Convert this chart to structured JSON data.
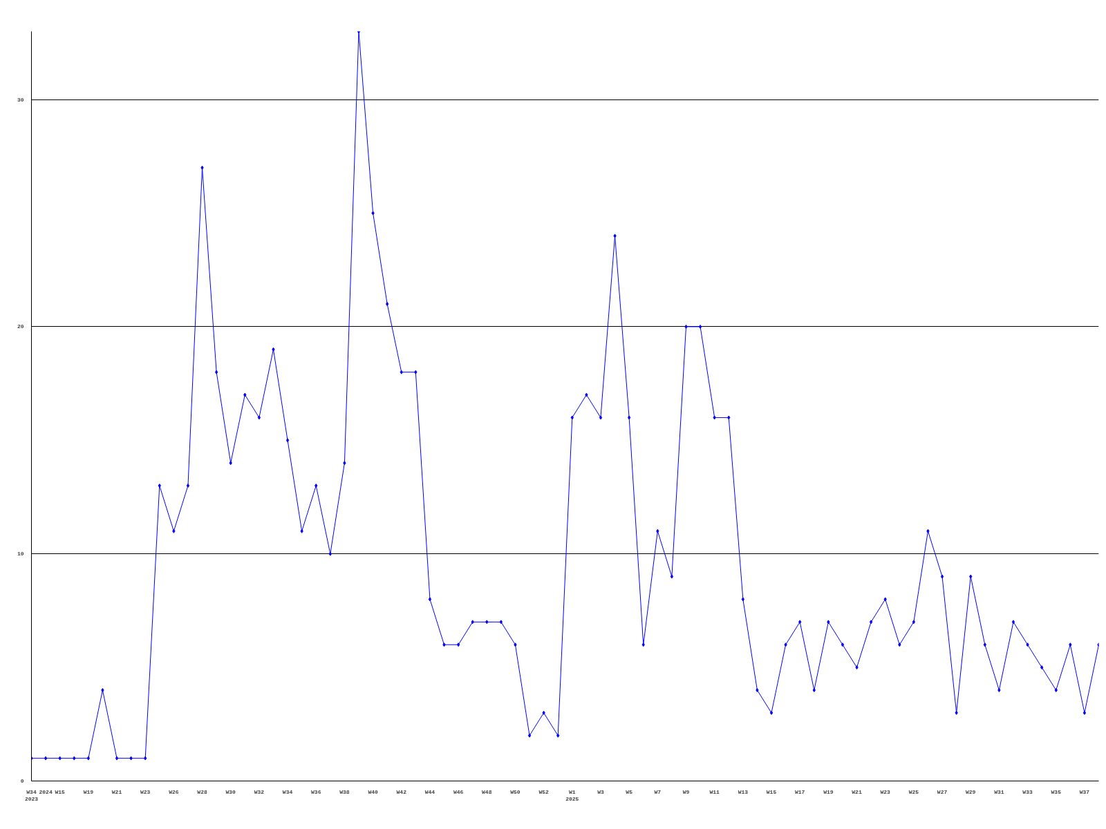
{
  "chart_data": {
    "type": "line",
    "categories": [
      "W34\n2023",
      "2024",
      "W15",
      null,
      "W19",
      null,
      "W21",
      null,
      "W23",
      null,
      "W26",
      null,
      "W28",
      null,
      "W30",
      null,
      "W32",
      null,
      "W34",
      null,
      "W36",
      null,
      "W38",
      null,
      "W40",
      null,
      "W42",
      null,
      "W44",
      null,
      "W46",
      null,
      "W48",
      null,
      "W50",
      null,
      "W52",
      null,
      "W1\n2025",
      null,
      "W3",
      null,
      "W5",
      null,
      "W7",
      null,
      "W9",
      null,
      "W11",
      null,
      "W13",
      null,
      "W15",
      null,
      "W17",
      null,
      "W19",
      null,
      "W21",
      null,
      "W23",
      null,
      "W25",
      null,
      "W27",
      null,
      "W29",
      null,
      "W31",
      null,
      "W33",
      null,
      "W35",
      null,
      "W37",
      null
    ],
    "series": [
      {
        "color": "#0000ff",
        "values": [
          1,
          1,
          1,
          1,
          1,
          4,
          1,
          1,
          1,
          13,
          11,
          13,
          27,
          18,
          14,
          17,
          16,
          19,
          15,
          11,
          13,
          10,
          14,
          33,
          25,
          21,
          18,
          18,
          8,
          6,
          6,
          7,
          7,
          7,
          6,
          2,
          3,
          2,
          16,
          17,
          16,
          24,
          16,
          6,
          11,
          9,
          20,
          20,
          16,
          16,
          8,
          4,
          3,
          6,
          7,
          4,
          7,
          6,
          5,
          7,
          8,
          6,
          7,
          11,
          9,
          3,
          9,
          6,
          4,
          7,
          6,
          5,
          4,
          6,
          3,
          6
        ]
      }
    ],
    "ylim": [
      0,
      33
    ],
    "yticks": [
      0,
      10,
      20,
      30
    ],
    "grid": "y",
    "marker": "diamond",
    "line_style": "solid"
  }
}
